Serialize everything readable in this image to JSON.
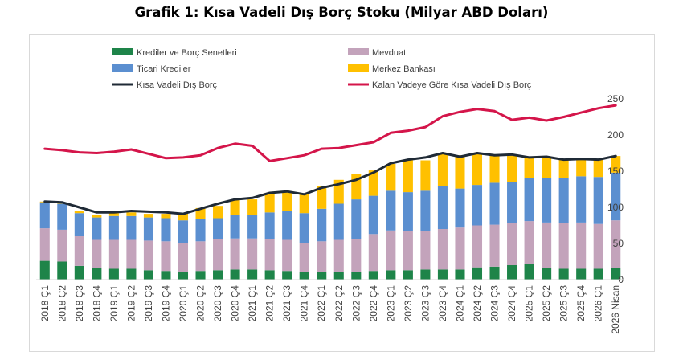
{
  "chart_data": {
    "type": "bar",
    "title": "Grafik 1: Kısa Vadeli Dış Borç Stoku (Milyar ABD Doları)",
    "categories": [
      "2018 Ç1",
      "2018 Ç2",
      "2018 Ç3",
      "2018 Ç4",
      "2019 Ç1",
      "2019 Ç2",
      "2019 Ç3",
      "2019 Ç4",
      "2020 Ç1",
      "2020 Ç2",
      "2020 Ç3",
      "2020 Ç4",
      "2021 Ç1",
      "2021 Ç2",
      "2021 Ç3",
      "2021 Ç4",
      "2022 Ç1",
      "2022 Ç2",
      "2022 Ç3",
      "2022 Ç4",
      "2023 Ç1",
      "2023 Ç2",
      "2023 Ç3",
      "2023 Ç4",
      "2024 Ç1",
      "2024 Ç2",
      "2024 Ç3",
      "2024 Ç4",
      "2025 Ç1",
      "2025 Ç2",
      "2025 Ç3",
      "2025 Ç4",
      "2026 Ç1",
      "2026 Nisan"
    ],
    "stacked_series": [
      {
        "name": "Krediler ve Borç Senetleri",
        "color": "#1e8449",
        "values": [
          26,
          25,
          19,
          16,
          15,
          15,
          13,
          12,
          11,
          12,
          13,
          14,
          14,
          13,
          12,
          11,
          11,
          11,
          10,
          12,
          13,
          13,
          14,
          14,
          14,
          17,
          18,
          20,
          22,
          16,
          15,
          15,
          15,
          16
        ]
      },
      {
        "name": "Mevduat",
        "color": "#c3a3bb",
        "values": [
          45,
          44,
          41,
          39,
          40,
          40,
          41,
          41,
          40,
          41,
          43,
          43,
          43,
          43,
          43,
          39,
          42,
          44,
          46,
          51,
          55,
          54,
          53,
          56,
          58,
          58,
          58,
          58,
          59,
          63,
          63,
          64,
          62,
          66
        ]
      },
      {
        "name": "Ticari Krediler",
        "color": "#5b8fd0",
        "values": [
          36,
          36,
          32,
          31,
          33,
          33,
          32,
          32,
          31,
          31,
          29,
          33,
          33,
          37,
          40,
          42,
          45,
          50,
          55,
          53,
          55,
          54,
          56,
          59,
          54,
          56,
          58,
          57,
          59,
          61,
          62,
          64,
          65,
          66
        ]
      },
      {
        "name": "Merkez Bankası",
        "color": "#ffc000",
        "values": [
          1,
          1,
          3,
          4,
          4,
          5,
          5,
          6,
          10,
          15,
          17,
          20,
          21,
          27,
          26,
          27,
          32,
          33,
          35,
          35,
          37,
          44,
          42,
          46,
          46,
          44,
          38,
          37,
          29,
          30,
          27,
          23,
          24,
          23
        ]
      }
    ],
    "line_series": [
      {
        "name": "Kısa Vadeli Dış Borç",
        "color": "#1f2a36",
        "values": [
          108,
          107,
          100,
          93,
          93,
          95,
          94,
          93,
          91,
          98,
          105,
          111,
          113,
          120,
          122,
          118,
          127,
          132,
          138,
          148,
          161,
          166,
          169,
          175,
          170,
          175,
          172,
          173,
          169,
          170,
          166,
          167,
          166,
          171
        ]
      },
      {
        "name": "Kalan Vadeye Göre Kısa Vadeli Dış Borç",
        "color": "#d4154a",
        "values": [
          181,
          179,
          176,
          175,
          177,
          180,
          174,
          168,
          169,
          172,
          182,
          188,
          185,
          164,
          168,
          172,
          181,
          182,
          186,
          190,
          203,
          206,
          211,
          226,
          232,
          236,
          233,
          221,
          224,
          220,
          225,
          231,
          237,
          241
        ]
      }
    ],
    "legend_items": [
      {
        "label": "Krediler ve Borç Senetleri",
        "kind": "bar",
        "color": "#1e8449"
      },
      {
        "label": "Mevduat",
        "kind": "bar",
        "color": "#c3a3bb"
      },
      {
        "label": "Ticari Krediler",
        "kind": "bar",
        "color": "#5b8fd0"
      },
      {
        "label": "Merkez Bankası",
        "kind": "bar",
        "color": "#ffc000"
      },
      {
        "label": "Kısa Vadeli Dış Borç",
        "kind": "line",
        "color": "#1f2a36"
      },
      {
        "label": "Kalan Vadeye Göre Kısa Vadeli Dış Borç",
        "kind": "line",
        "color": "#d4154a"
      }
    ],
    "ylim": [
      0,
      250
    ],
    "yticks": [
      0,
      50,
      100,
      150,
      200,
      250
    ],
    "y_axis_side": "right",
    "legend_position": "top-left, two columns",
    "grid": false
  }
}
